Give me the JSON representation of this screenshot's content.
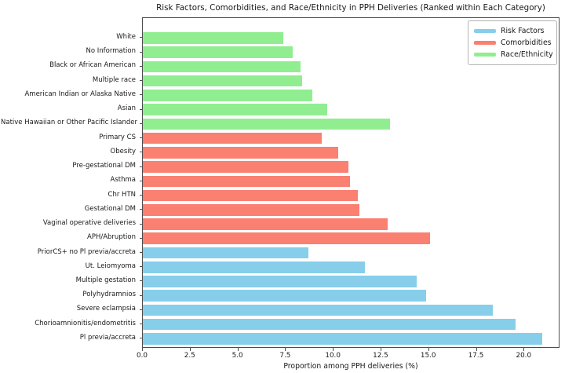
{
  "title": "Risk Factors, Comorbidities, and Race/Ethnicity in PPH Deliveries (Ranked within Each Category)",
  "chart_data": {
    "type": "bar",
    "orientation": "horizontal",
    "title": "Risk Factors, Comorbidities, and Race/Ethnicity in PPH Deliveries (Ranked within Each Category)",
    "xlabel": "Proportion among PPH deliveries (%)",
    "ylabel": "",
    "xlim": [
      0,
      21.88
    ],
    "grid": false,
    "xticks": [
      {
        "value": 0,
        "label": "0.0"
      },
      {
        "value": 2.5,
        "label": "2.5"
      },
      {
        "value": 5,
        "label": "5.0"
      },
      {
        "value": 7.5,
        "label": "7.5"
      },
      {
        "value": 10,
        "label": "10.0"
      },
      {
        "value": 12.5,
        "label": "12.5"
      },
      {
        "value": 15,
        "label": "15.0"
      },
      {
        "value": 17.5,
        "label": "17.5"
      },
      {
        "value": 20,
        "label": "20.0"
      }
    ],
    "legend": {
      "position": "upper right",
      "entries": [
        {
          "label": "Risk Factors",
          "color": "#87CEEB"
        },
        {
          "label": "Comorbidities",
          "color": "#FA8072"
        },
        {
          "label": "Race/Ethnicity",
          "color": "#90EE90"
        }
      ]
    },
    "bars": [
      {
        "label": "White",
        "group": "Race/Ethnicity",
        "value": 7.4
      },
      {
        "label": "No Information",
        "group": "Race/Ethnicity",
        "value": 7.9
      },
      {
        "label": "Black or African American",
        "group": "Race/Ethnicity",
        "value": 8.3
      },
      {
        "label": "Multiple race",
        "group": "Race/Ethnicity",
        "value": 8.4
      },
      {
        "label": "American Indian or Alaska Native",
        "group": "Race/Ethnicity",
        "value": 8.9
      },
      {
        "label": "Asian",
        "group": "Race/Ethnicity",
        "value": 9.7
      },
      {
        "label": "Native Hawaiian or Other Pacific Islander",
        "group": "Race/Ethnicity",
        "value": 13.0
      },
      {
        "label": "Primary CS",
        "group": "Comorbidities",
        "value": 9.4
      },
      {
        "label": "Obesity",
        "group": "Comorbidities",
        "value": 10.3
      },
      {
        "label": "Pre-gestational DM",
        "group": "Comorbidities",
        "value": 10.8
      },
      {
        "label": "Asthma",
        "group": "Comorbidities",
        "value": 10.9
      },
      {
        "label": "Chr HTN",
        "group": "Comorbidities",
        "value": 11.3
      },
      {
        "label": "Gestational DM",
        "group": "Comorbidities",
        "value": 11.4
      },
      {
        "label": "Vaginal operative deliveries",
        "group": "Comorbidities",
        "value": 12.9
      },
      {
        "label": "APH/Abruption",
        "group": "Comorbidities",
        "value": 15.1
      },
      {
        "label": "PriorCS+ no Pl previa/accreta",
        "group": "Risk Factors",
        "value": 8.7
      },
      {
        "label": "Ut. Leiomyoma",
        "group": "Risk Factors",
        "value": 11.7
      },
      {
        "label": "Multiple gestation",
        "group": "Risk Factors",
        "value": 14.4
      },
      {
        "label": "Polyhydramnios",
        "group": "Risk Factors",
        "value": 14.9
      },
      {
        "label": "Severe eclampsia",
        "group": "Risk Factors",
        "value": 18.4
      },
      {
        "label": "Chorioamnionitis/endometritis",
        "group": "Risk Factors",
        "value": 19.6
      },
      {
        "label": "Pl previa/accreta",
        "group": "Risk Factors",
        "value": 21.0
      }
    ]
  },
  "colors": {
    "risk_factors": "#87CEEB",
    "comorbidities": "#FA8072",
    "race_ethnicity": "#90EE90",
    "frame": "#4d4d4d",
    "text": "#191919"
  }
}
